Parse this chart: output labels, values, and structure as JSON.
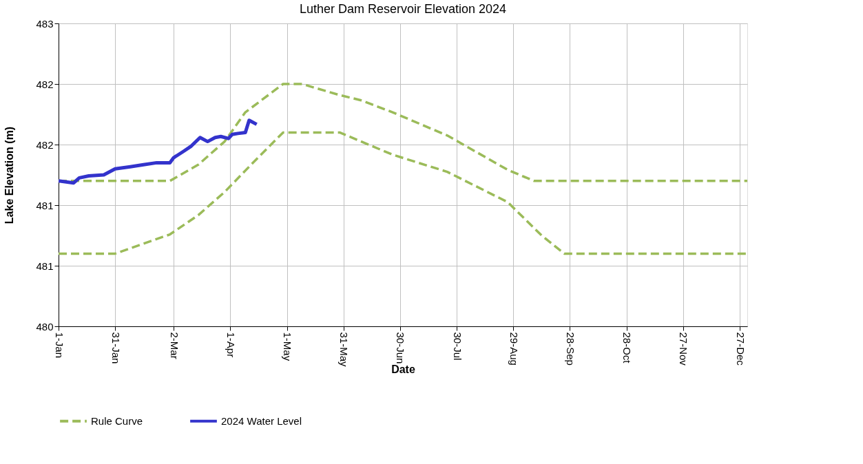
{
  "chart_data": {
    "type": "line",
    "title": "Luther Dam Reservoir Elevation 2024",
    "xlabel": "Date",
    "ylabel": "Lake Elevation (m)",
    "xlim": [
      "2024-01-01",
      "2024-12-31"
    ],
    "xticks": [
      {
        "value": "2024-01-01",
        "label": "1-Jan"
      },
      {
        "value": "2024-01-31",
        "label": "31-Jan"
      },
      {
        "value": "2024-03-02",
        "label": "2-Mar"
      },
      {
        "value": "2024-04-01",
        "label": "1-Apr"
      },
      {
        "value": "2024-05-01",
        "label": "1-May"
      },
      {
        "value": "2024-05-31",
        "label": "31-May"
      },
      {
        "value": "2024-06-30",
        "label": "30-Jun"
      },
      {
        "value": "2024-07-30",
        "label": "30-Jul"
      },
      {
        "value": "2024-08-29",
        "label": "29-Aug"
      },
      {
        "value": "2024-09-28",
        "label": "28-Sep"
      },
      {
        "value": "2024-10-28",
        "label": "28-Oct"
      },
      {
        "value": "2024-11-27",
        "label": "27-Nov"
      },
      {
        "value": "2024-12-27",
        "label": "27-Dec"
      }
    ],
    "ylim": [
      480,
      483
    ],
    "yticks": [
      480,
      {
        "value": 480.6,
        "label": "481"
      },
      {
        "value": 481.2,
        "label": "481"
      },
      {
        "value": 481.8,
        "label": "482"
      },
      {
        "value": 482.4,
        "label": "482"
      },
      483
    ],
    "grid": true,
    "legend": "bottom",
    "series": [
      {
        "name": "Rule Curve",
        "color": "#9bbb59",
        "line_style": "dashed",
        "x": [
          "2024-01-01",
          "2024-02-29",
          "2024-03-15",
          "2024-03-29",
          "2024-04-09",
          "2024-04-29",
          "2024-05-09",
          "2024-05-29",
          "2024-06-09",
          "2024-06-26",
          "2024-07-25",
          "2024-08-26",
          "2024-09-09",
          "2024-12-31"
        ],
        "values": [
          481.44,
          481.44,
          481.6,
          481.83,
          482.12,
          482.4,
          482.4,
          482.29,
          482.24,
          482.12,
          481.89,
          481.55,
          481.44,
          481.44
        ]
      },
      {
        "color": "#9bbb59",
        "line_style": "dashed",
        "x": [
          "2024-01-01",
          "2024-01-31",
          "2024-02-29",
          "2024-03-15",
          "2024-03-29",
          "2024-04-12",
          "2024-04-29",
          "2024-05-29",
          "2024-06-26",
          "2024-07-25",
          "2024-08-26",
          "2024-09-13",
          "2024-09-25",
          "2024-12-31"
        ],
        "values": [
          480.72,
          480.72,
          480.91,
          481.1,
          481.33,
          481.6,
          481.92,
          481.92,
          481.7,
          481.53,
          481.23,
          480.9,
          480.72,
          480.72
        ]
      },
      {
        "name": "2024 Water Level",
        "color": "#3333cc",
        "line_style": "solid",
        "x": [
          "2024-01-01",
          "2024-01-09",
          "2024-01-12",
          "2024-01-17",
          "2024-01-25",
          "2024-01-31",
          "2024-02-08",
          "2024-02-15",
          "2024-02-22",
          "2024-02-29",
          "2024-03-02",
          "2024-03-07",
          "2024-03-11",
          "2024-03-16",
          "2024-03-20",
          "2024-03-24",
          "2024-03-27",
          "2024-03-31",
          "2024-04-02",
          "2024-04-05",
          "2024-04-09",
          "2024-04-11",
          "2024-04-15"
        ],
        "values": [
          481.44,
          481.42,
          481.47,
          481.49,
          481.5,
          481.56,
          481.58,
          481.6,
          481.62,
          481.62,
          481.67,
          481.73,
          481.78,
          481.87,
          481.83,
          481.87,
          481.88,
          481.86,
          481.9,
          481.91,
          481.92,
          482.04,
          482.0
        ]
      }
    ]
  }
}
